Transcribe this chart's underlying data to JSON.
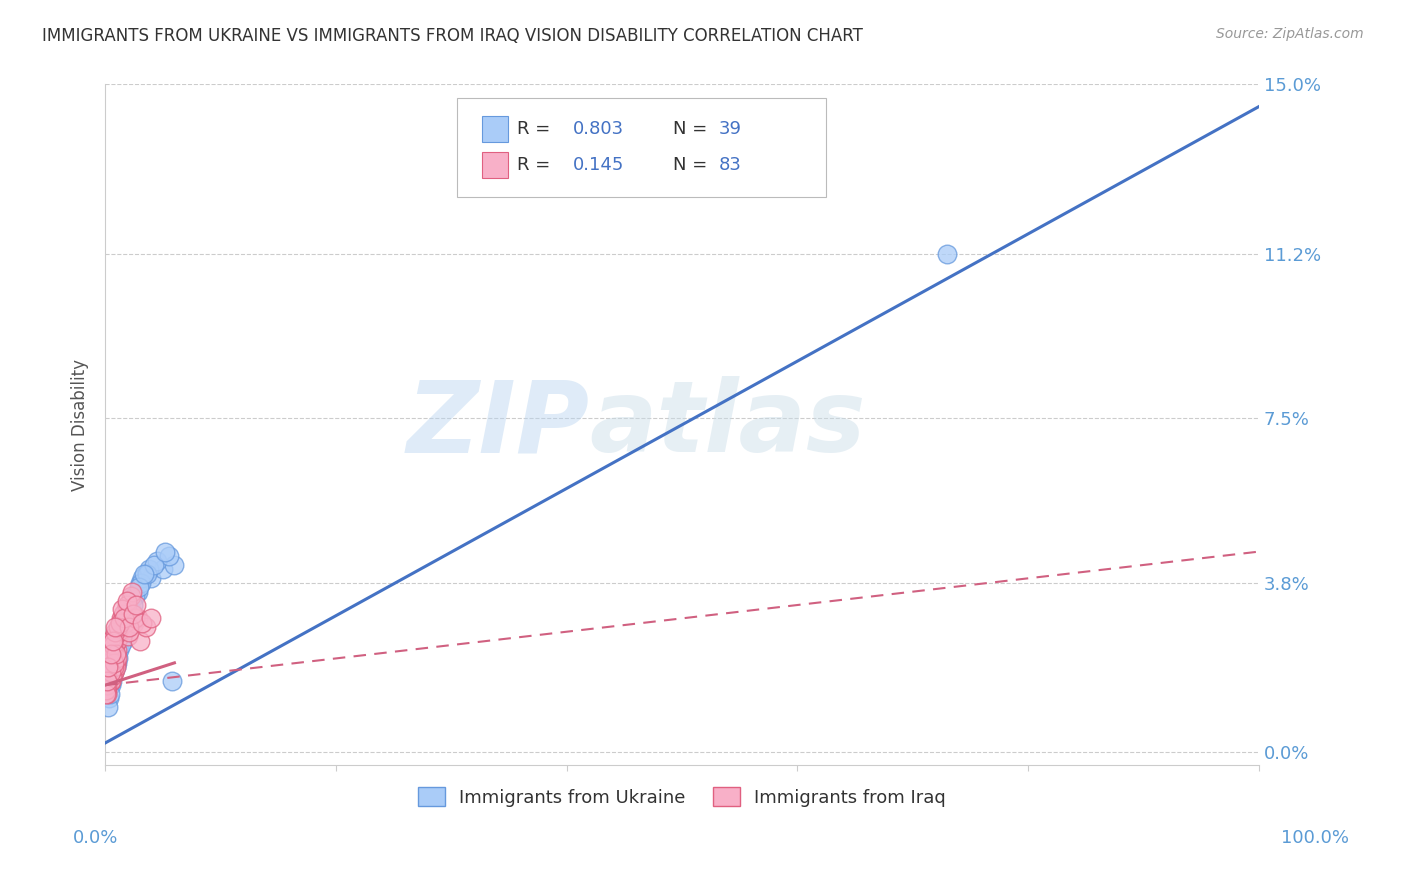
{
  "title": "IMMIGRANTS FROM UKRAINE VS IMMIGRANTS FROM IRAQ VISION DISABILITY CORRELATION CHART",
  "source": "Source: ZipAtlas.com",
  "ylabel": "Vision Disability",
  "ytick_labels": [
    "0.0%",
    "3.8%",
    "7.5%",
    "11.2%",
    "15.0%"
  ],
  "ytick_values": [
    0.0,
    3.8,
    7.5,
    11.2,
    15.0
  ],
  "xlim": [
    0.0,
    100.0
  ],
  "ylim": [
    -0.3,
    15.0
  ],
  "ukraine_color": "#aaccf8",
  "ukraine_edge_color": "#6699dd",
  "iraq_color": "#f8b0c8",
  "iraq_edge_color": "#e06080",
  "ukraine_R": 0.803,
  "ukraine_N": 39,
  "iraq_R": 0.145,
  "iraq_N": 83,
  "ukraine_line_color": "#4472c4",
  "iraq_line_color": "#d06080",
  "watermark_zip": "ZIP",
  "watermark_atlas": "atlas",
  "background_color": "#ffffff",
  "grid_color": "#cccccc",
  "title_color": "#333333",
  "label_color": "#5b9bd5",
  "ukraine_scatter_x": [
    0.5,
    1.0,
    1.5,
    2.0,
    2.5,
    3.0,
    3.5,
    4.0,
    5.0,
    6.0,
    0.3,
    0.8,
    1.2,
    1.8,
    2.2,
    2.8,
    3.2,
    3.8,
    4.5,
    5.5,
    0.2,
    0.6,
    1.1,
    1.6,
    2.1,
    2.6,
    3.1,
    3.6,
    4.2,
    5.2,
    0.4,
    0.9,
    1.4,
    1.9,
    2.4,
    2.9,
    3.4,
    73.0,
    5.8
  ],
  "ukraine_scatter_y": [
    1.5,
    2.0,
    2.5,
    3.0,
    3.5,
    3.8,
    4.0,
    3.9,
    4.1,
    4.2,
    1.2,
    1.8,
    2.3,
    2.8,
    3.2,
    3.6,
    3.9,
    4.1,
    4.3,
    4.4,
    1.0,
    1.6,
    2.1,
    2.6,
    3.1,
    3.5,
    3.8,
    4.0,
    4.2,
    4.5,
    1.3,
    1.9,
    2.4,
    2.9,
    3.3,
    3.7,
    4.0,
    11.2,
    1.6
  ],
  "iraq_scatter_x": [
    0.1,
    0.2,
    0.3,
    0.4,
    0.5,
    0.6,
    0.7,
    0.8,
    0.9,
    1.0,
    0.15,
    0.25,
    0.35,
    0.45,
    0.55,
    0.65,
    0.75,
    0.85,
    0.95,
    1.1,
    0.12,
    0.22,
    0.32,
    0.42,
    0.52,
    0.62,
    0.72,
    0.82,
    0.92,
    1.05,
    1.2,
    1.4,
    1.6,
    1.8,
    2.0,
    2.2,
    2.5,
    2.8,
    3.0,
    3.5,
    0.18,
    0.28,
    0.38,
    0.48,
    0.58,
    0.68,
    0.78,
    0.88,
    0.98,
    1.15,
    1.3,
    1.5,
    1.7,
    1.9,
    2.1,
    2.3,
    2.6,
    0.08,
    0.16,
    0.24,
    0.34,
    0.44,
    0.54,
    0.64,
    0.74,
    0.84,
    0.94,
    1.08,
    1.25,
    1.45,
    1.65,
    1.85,
    2.05,
    2.4,
    2.7,
    3.2,
    4.0,
    0.06,
    0.14,
    0.26,
    0.46,
    0.66,
    0.86
  ],
  "iraq_scatter_y": [
    1.5,
    2.0,
    1.8,
    2.5,
    1.6,
    2.2,
    1.9,
    2.6,
    2.0,
    2.3,
    1.4,
    1.9,
    2.1,
    2.4,
    1.7,
    2.2,
    1.8,
    2.5,
    2.0,
    2.6,
    1.3,
    1.8,
    2.0,
    2.3,
    1.6,
    2.1,
    1.8,
    2.4,
    1.9,
    2.5,
    2.7,
    3.0,
    2.8,
    3.2,
    2.6,
    3.5,
    2.9,
    3.0,
    2.5,
    2.8,
    1.5,
    1.9,
    2.2,
    2.5,
    1.7,
    2.3,
    1.9,
    2.6,
    2.1,
    2.7,
    2.8,
    3.1,
    2.9,
    3.3,
    2.7,
    3.6,
    3.0,
    1.4,
    1.7,
    2.0,
    2.2,
    2.5,
    1.8,
    2.4,
    2.0,
    2.7,
    2.2,
    2.8,
    2.9,
    3.2,
    3.0,
    3.4,
    2.8,
    3.1,
    3.3,
    2.9,
    3.0,
    1.3,
    1.6,
    1.9,
    2.2,
    2.5,
    2.8
  ],
  "ukraine_line_x0": 0.0,
  "ukraine_line_y0": 0.2,
  "ukraine_line_x1": 100.0,
  "ukraine_line_y1": 14.5,
  "iraq_line_solid_x0": 0.0,
  "iraq_line_solid_y0": 1.5,
  "iraq_line_solid_x1": 6.0,
  "iraq_line_solid_y1": 2.0,
  "iraq_line_dash_x0": 0.0,
  "iraq_line_dash_y0": 1.5,
  "iraq_line_dash_x1": 100.0,
  "iraq_line_dash_y1": 4.5
}
